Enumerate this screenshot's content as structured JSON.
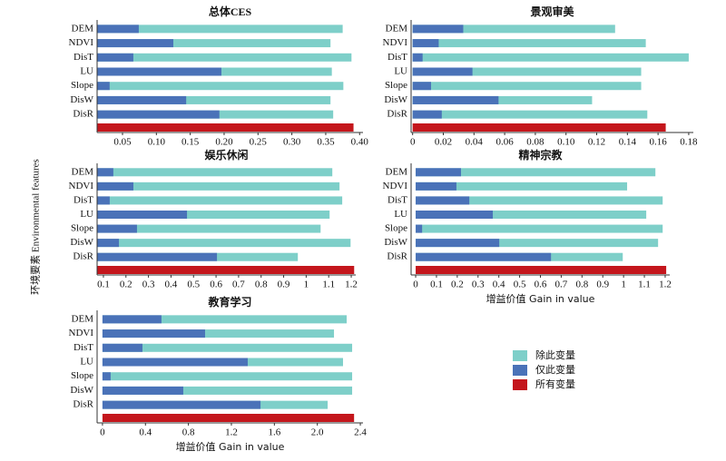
{
  "chart_data": [
    {
      "type": "bar",
      "orientation": "horizontal",
      "title": "总体CES",
      "categories": [
        "DEM",
        "NDVI",
        "DisT",
        "LU",
        "Slope",
        "DisW",
        "DisR"
      ],
      "series": [
        {
          "name": "除此变量",
          "color": "#7ecfc9",
          "values": [
            0.375,
            0.357,
            0.388,
            0.359,
            0.376,
            0.357,
            0.361
          ]
        },
        {
          "name": "仅此变量",
          "color": "#4a72b8",
          "values": [
            0.074,
            0.125,
            0.066,
            0.196,
            0.031,
            0.144,
            0.193
          ]
        }
      ],
      "total": {
        "name": "所有变量",
        "color": "#c4161c",
        "value": 0.391
      },
      "xlim": [
        0.0125,
        0.405
      ],
      "xticks": [
        0.05,
        {
          "value": 0.1,
          "label": "0.10"
        },
        0.15,
        {
          "value": 0.2,
          "label": "0.20"
        },
        0.25,
        {
          "value": 0.3,
          "label": "0.30"
        },
        0.35,
        {
          "value": 0.4,
          "label": "0.40"
        }
      ]
    },
    {
      "type": "bar",
      "orientation": "horizontal",
      "title": "景观审美",
      "categories": [
        "DEM",
        "NDVI",
        "DisT",
        "LU",
        "Slope",
        "DisW",
        "DisR"
      ],
      "series": [
        {
          "name": "除此变量",
          "color": "#7ecfc9",
          "values": [
            0.132,
            0.152,
            0.18,
            0.149,
            0.149,
            0.117,
            0.153
          ]
        },
        {
          "name": "仅此变量",
          "color": "#4a72b8",
          "values": [
            0.033,
            0.017,
            0.0065,
            0.039,
            0.012,
            0.056,
            0.019
          ]
        }
      ],
      "total": {
        "name": "所有变量",
        "color": "#c4161c",
        "value": 0.165
      },
      "xlim": [
        -0.001,
        0.183
      ],
      "xticks": [
        0,
        0.02,
        0.04,
        0.06,
        0.08,
        {
          "value": 0.1,
          "label": "0.10"
        },
        0.12,
        0.14,
        0.16,
        0.18
      ]
    },
    {
      "type": "bar",
      "orientation": "horizontal",
      "title": "娱乐休闲",
      "categories": [
        "DEM",
        "NDVI",
        "DisT",
        "LU",
        "Slope",
        "DisW",
        "DisR"
      ],
      "series": [
        {
          "name": "除此变量",
          "color": "#7ecfc9",
          "values": [
            1.116,
            1.148,
            1.16,
            1.104,
            1.064,
            1.197,
            0.963
          ]
        },
        {
          "name": "仅此变量",
          "color": "#4a72b8",
          "values": [
            0.144,
            0.233,
            0.128,
            0.471,
            0.249,
            0.169,
            0.604
          ]
        }
      ],
      "total": {
        "name": "所有变量",
        "color": "#c4161c",
        "value": 1.213
      },
      "xlim": [
        0.072,
        1.22
      ],
      "xticks": [
        0.1,
        0.2,
        0.3,
        0.4,
        0.5,
        0.6,
        0.7,
        0.8,
        0.9,
        1,
        1.1,
        1.2
      ],
      "ylabel": "环境要素 Environmental features"
    },
    {
      "type": "bar",
      "orientation": "horizontal",
      "title": "精神宗教",
      "categories": [
        "DEM",
        "NDVI",
        "DisT",
        "LU",
        "Slope",
        "DisW",
        "DisR"
      ],
      "series": [
        {
          "name": "除此变量",
          "color": "#7ecfc9",
          "values": [
            1.153,
            1.017,
            1.188,
            1.109,
            1.188,
            1.166,
            0.996
          ]
        },
        {
          "name": "仅此变量",
          "color": "#4a72b8",
          "values": [
            0.218,
            0.196,
            0.258,
            0.371,
            0.031,
            0.402,
            0.651
          ]
        }
      ],
      "total": {
        "name": "所有变量",
        "color": "#c4161c",
        "value": 1.205
      },
      "xlim": [
        -0.022,
        1.222
      ],
      "xticks": [
        0,
        0.1,
        0.2,
        0.3,
        0.4,
        0.5,
        0.6,
        0.7,
        0.8,
        0.9,
        1,
        1.1,
        1.2
      ],
      "xlabel": "增益价值 Gain in value"
    },
    {
      "type": "bar",
      "orientation": "horizontal",
      "title": "教育学习",
      "categories": [
        "DEM",
        "NDVI",
        "DisT",
        "LU",
        "Slope",
        "DisW",
        "DisR"
      ],
      "series": [
        {
          "name": "除此变量",
          "color": "#7ecfc9",
          "values": [
            2.273,
            2.155,
            2.324,
            2.239,
            2.324,
            2.324,
            2.096
          ]
        },
        {
          "name": "仅此变量",
          "color": "#4a72b8",
          "values": [
            0.549,
            0.955,
            0.372,
            1.352,
            0.076,
            0.752,
            1.471
          ]
        }
      ],
      "total": {
        "name": "所有变量",
        "color": "#c4161c",
        "value": 2.342
      },
      "xlim": [
        -0.05,
        2.425
      ],
      "xticks": [
        0,
        0.4,
        0.8,
        1.2,
        1.6,
        {
          "value": 2.0,
          "label": "2.0"
        },
        2.4
      ],
      "xlabel": "增益价值 Gain in value"
    }
  ]
}
